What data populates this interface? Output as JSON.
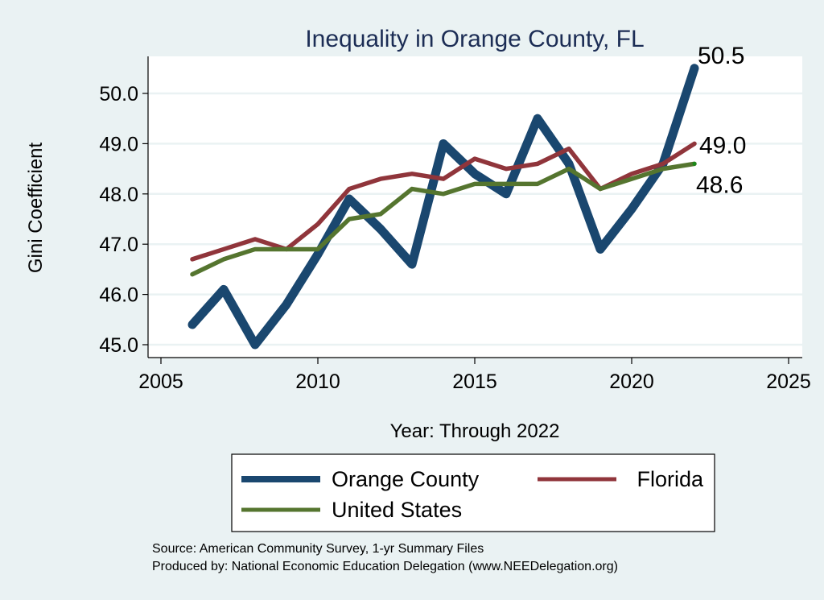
{
  "chart_data": {
    "type": "line",
    "title": "Inequality in Orange County, FL",
    "xlabel": "Year: Through 2022",
    "ylabel": "Gini Coefficient",
    "xlim": [
      2005,
      2025
    ],
    "ylim": [
      45.0,
      50.0
    ],
    "x_ticks": [
      2005,
      2010,
      2015,
      2020,
      2025
    ],
    "x_tick_labels": [
      "2005",
      "2010",
      "2015",
      "2020",
      "2025"
    ],
    "y_ticks": [
      45,
      46,
      47,
      48,
      49,
      50
    ],
    "y_tick_labels": [
      "45.0",
      "46.0",
      "47.0",
      "48.0",
      "49.0",
      "50.0"
    ],
    "grid": true,
    "x": [
      2006,
      2007,
      2008,
      2009,
      2010,
      2011,
      2012,
      2013,
      2014,
      2015,
      2016,
      2017,
      2018,
      2019,
      2020,
      2021,
      2022
    ],
    "series": [
      {
        "name": "Orange County",
        "color": "#1a476f",
        "values": [
          45.4,
          46.1,
          45.0,
          45.8,
          46.8,
          47.9,
          47.3,
          46.6,
          49.0,
          48.4,
          48.0,
          49.5,
          48.6,
          46.9,
          47.7,
          48.6,
          50.5
        ],
        "end_label": "50.5"
      },
      {
        "name": "Florida",
        "color": "#90353b",
        "values": [
          46.7,
          46.9,
          47.1,
          46.9,
          47.4,
          48.1,
          48.3,
          48.4,
          48.3,
          48.7,
          48.5,
          48.6,
          48.9,
          48.1,
          48.4,
          48.6,
          49.0
        ],
        "end_label": "49.0"
      },
      {
        "name": "United States",
        "color": "#55752f",
        "values": [
          46.4,
          46.7,
          46.9,
          46.9,
          46.9,
          47.5,
          47.6,
          48.1,
          48.0,
          48.2,
          48.2,
          48.2,
          48.5,
          48.1,
          48.3,
          48.5,
          48.6
        ],
        "end_label": "48.6"
      }
    ],
    "legend": {
      "placement": "bottom",
      "entries": [
        "Orange County",
        "Florida",
        "United States"
      ]
    },
    "notes": [
      "Source: American Community Survey, 1-yr Summary Files",
      "Produced by: National Economic Education Delegation (www.NEEDelegation.org)"
    ]
  },
  "colors": {
    "background": "#eaf2f3",
    "plot_background": "#ffffff",
    "gridline": "#eaf2f3",
    "title": "#1c2d55"
  }
}
